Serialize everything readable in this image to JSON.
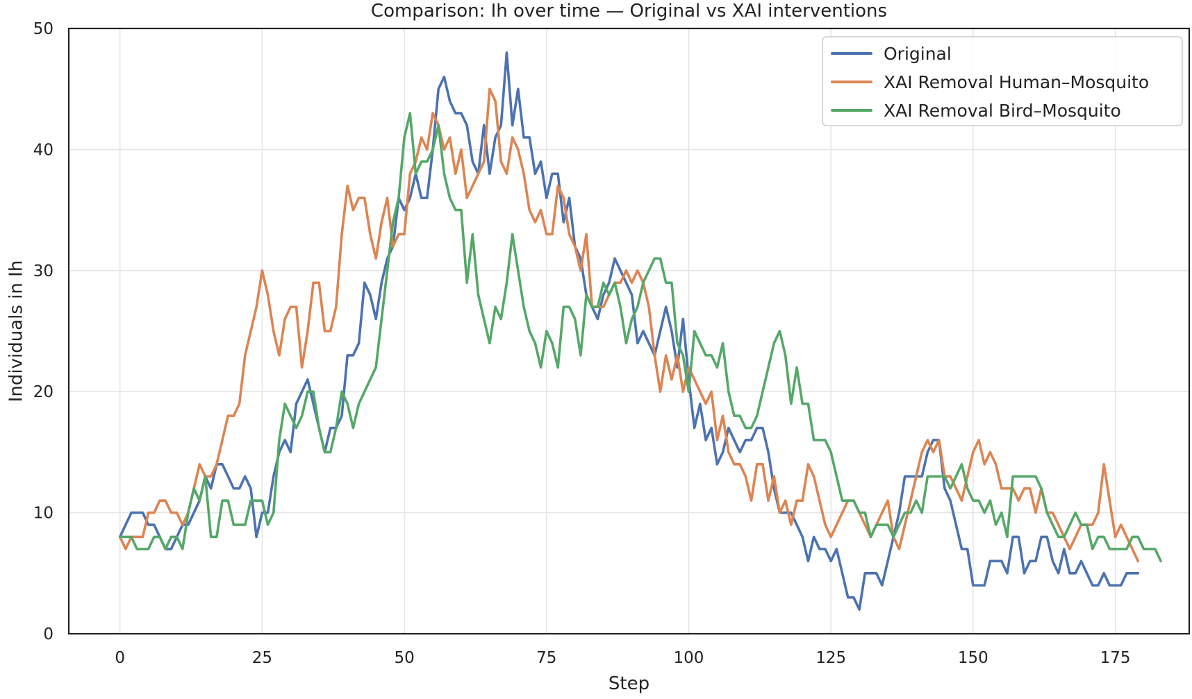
{
  "chart_data": {
    "type": "line",
    "title": "Comparison: Ih over time — Original vs XAI interventions",
    "xlabel": "Step",
    "ylabel": "Individuals in Ih",
    "xlim": [
      -9,
      188
    ],
    "ylim": [
      0,
      50
    ],
    "xticks": [
      0,
      25,
      50,
      75,
      100,
      125,
      150,
      175
    ],
    "yticks": [
      0,
      10,
      20,
      30,
      40,
      50
    ],
    "grid": true,
    "legend_position": "top-right",
    "series": [
      {
        "name": "Original",
        "color": "#4c72b0",
        "values": [
          8,
          9,
          10,
          10,
          10,
          9,
          9,
          8,
          7,
          7,
          8,
          9,
          9,
          10,
          11,
          13,
          12,
          14,
          14,
          13,
          12,
          12,
          13,
          12,
          8,
          10,
          10,
          13,
          15,
          16,
          15,
          19,
          20,
          21,
          19,
          17,
          15,
          17,
          17,
          18,
          23,
          23,
          24,
          29,
          28,
          26,
          29,
          31,
          32,
          36,
          35,
          36,
          38,
          36,
          36,
          40,
          45,
          46,
          44,
          43,
          43,
          42,
          39,
          38,
          42,
          38,
          41,
          42,
          48,
          42,
          45,
          41,
          41,
          38,
          39,
          36,
          38,
          38,
          34,
          36,
          32,
          31,
          28,
          27,
          26,
          28,
          29,
          31,
          30,
          29,
          28,
          24,
          25,
          24,
          23,
          25,
          27,
          25,
          22,
          26,
          21,
          17,
          19,
          16,
          17,
          14,
          15,
          17,
          16,
          15,
          16,
          16,
          17,
          17,
          15,
          12,
          10,
          10,
          10,
          9,
          8,
          6,
          8,
          7,
          7,
          6,
          7,
          5,
          3,
          3,
          2,
          5,
          5,
          5,
          4,
          6,
          8,
          10,
          13,
          13,
          13,
          13,
          15,
          16,
          16,
          12,
          11,
          9,
          7,
          7,
          4,
          4,
          4,
          6,
          6,
          6,
          5,
          8,
          8,
          5,
          6,
          6,
          8,
          8,
          6,
          5,
          7,
          5,
          5,
          6,
          5,
          4,
          4,
          5,
          4,
          4,
          4,
          5,
          5,
          5
        ]
      },
      {
        "name": "XAI Removal Human–Mosquito",
        "color": "#dd8452",
        "values": [
          8,
          7,
          8,
          8,
          8,
          10,
          10,
          11,
          11,
          10,
          10,
          9,
          10,
          12,
          14,
          13,
          13,
          14,
          16,
          18,
          18,
          19,
          23,
          25,
          27,
          30,
          28,
          25,
          23,
          26,
          27,
          27,
          22,
          25,
          29,
          29,
          25,
          25,
          27,
          33,
          37,
          35,
          36,
          36,
          33,
          31,
          34,
          36,
          32,
          33,
          33,
          38,
          39,
          41,
          40,
          43,
          42,
          40,
          41,
          38,
          40,
          36,
          37,
          38,
          39,
          45,
          44,
          39,
          38,
          41,
          40,
          38,
          35,
          34,
          35,
          33,
          33,
          37,
          36,
          33,
          32,
          30,
          33,
          27,
          27,
          27,
          28,
          29,
          29,
          30,
          29,
          30,
          29,
          27,
          23,
          20,
          23,
          21,
          23,
          20,
          22,
          21,
          20,
          19,
          20,
          16,
          18,
          15,
          14,
          14,
          13,
          11,
          14,
          14,
          11,
          13,
          10,
          11,
          9,
          11,
          11,
          14,
          13,
          11,
          9,
          8,
          9,
          10,
          11,
          11,
          10,
          9,
          8,
          9,
          10,
          11,
          8,
          7,
          9,
          11,
          13,
          15,
          16,
          15,
          16,
          13,
          13,
          12,
          11,
          13,
          15,
          16,
          14,
          15,
          14,
          12,
          12,
          12,
          11,
          12,
          12,
          10,
          12,
          10,
          10,
          9,
          8,
          7,
          8,
          9,
          9,
          9,
          10,
          14,
          11,
          8,
          9,
          8,
          7,
          6
        ]
      },
      {
        "name": "XAI Removal Bird–Mosquito",
        "color": "#55a868",
        "values": [
          8,
          8,
          8,
          7,
          7,
          7,
          8,
          8,
          7,
          8,
          8,
          7,
          10,
          12,
          11,
          13,
          8,
          8,
          11,
          11,
          9,
          9,
          9,
          11,
          11,
          11,
          9,
          10,
          16,
          19,
          18,
          17,
          18,
          20,
          20,
          17,
          15,
          15,
          17,
          20,
          19,
          17,
          19,
          20,
          21,
          22,
          26,
          30,
          34,
          36,
          41,
          43,
          38,
          39,
          39,
          40,
          42,
          38,
          36,
          35,
          35,
          29,
          33,
          28,
          26,
          24,
          27,
          26,
          29,
          33,
          30,
          27,
          25,
          24,
          22,
          25,
          24,
          22,
          27,
          27,
          26,
          23,
          28,
          27,
          27,
          29,
          28,
          29,
          27,
          24,
          26,
          27,
          29,
          30,
          31,
          31,
          29,
          29,
          24,
          23,
          20,
          25,
          24,
          23,
          23,
          22,
          24,
          20,
          18,
          18,
          17,
          17,
          18,
          20,
          22,
          24,
          25,
          23,
          19,
          22,
          19,
          19,
          16,
          16,
          16,
          15,
          13,
          11,
          11,
          11,
          10,
          10,
          8,
          9,
          9,
          9,
          8,
          9,
          10,
          10,
          11,
          10,
          13,
          13,
          13,
          13,
          12,
          13,
          14,
          12,
          11,
          11,
          10,
          11,
          9,
          10,
          8,
          13,
          13,
          13,
          13,
          13,
          12,
          10,
          9,
          8,
          8,
          9,
          10,
          9,
          9,
          7,
          8,
          8,
          7,
          7,
          7,
          7,
          8,
          8,
          7,
          7,
          7,
          6
        ]
      }
    ]
  }
}
